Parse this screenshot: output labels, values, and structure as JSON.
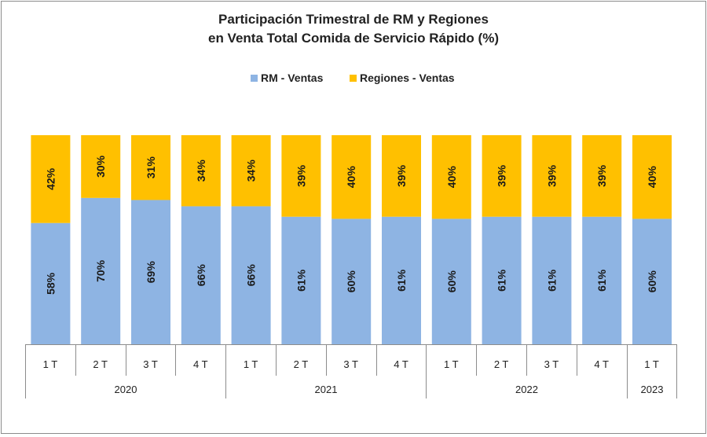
{
  "chart_data": {
    "type": "bar",
    "stacked": true,
    "title": [
      "Participación Trimestral de RM y Regiones",
      "en Venta Total Comida de Servicio Rápido (%)"
    ],
    "legend": {
      "placement": "top"
    },
    "grid": false,
    "ylim": [
      0,
      100
    ],
    "categories": [
      "1 T",
      "2 T",
      "3 T",
      "4 T",
      "1 T",
      "2 T",
      "3 T",
      "4 T",
      "1 T",
      "2 T",
      "3 T",
      "4 T",
      "1 T"
    ],
    "groups": [
      {
        "label": "2020",
        "start": 0,
        "count": 4
      },
      {
        "label": "2021",
        "start": 4,
        "count": 4
      },
      {
        "label": "2022",
        "start": 8,
        "count": 4
      },
      {
        "label": "2023",
        "start": 12,
        "count": 1
      }
    ],
    "series": [
      {
        "name": "RM - Ventas",
        "color": "#8eb4e3",
        "values": [
          58,
          70,
          69,
          66,
          66,
          61,
          60,
          61,
          60,
          61,
          61,
          61,
          60
        ]
      },
      {
        "name": "Regiones - Ventas",
        "color": "#ffc000",
        "values": [
          42,
          30,
          31,
          34,
          34,
          39,
          40,
          39,
          40,
          39,
          39,
          39,
          40
        ]
      }
    ],
    "data_labels": [
      [
        "58%",
        "70%",
        "69%",
        "66%",
        "66%",
        "61%",
        "60%",
        "61%",
        "60%",
        "61%",
        "61%",
        "61%",
        "60%"
      ],
      [
        "42%",
        "30%",
        "31%",
        "34%",
        "34%",
        "39%",
        "40%",
        "39%",
        "40%",
        "39%",
        "39%",
        "39%",
        "40%"
      ]
    ]
  }
}
